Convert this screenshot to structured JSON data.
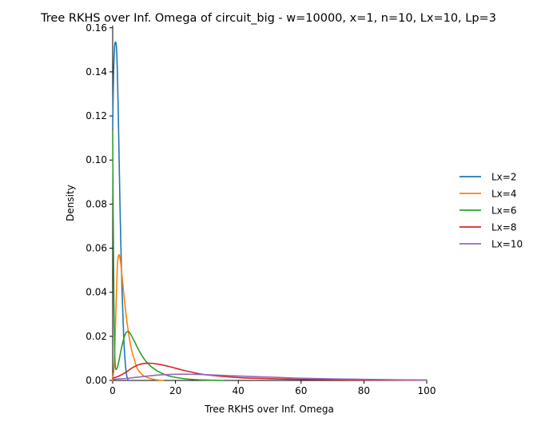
{
  "chart_data": {
    "type": "line",
    "title": "Tree RKHS over Inf. Omega of circuit_big - w=10000, x=1, n=10, Lx=10, Lp=3",
    "xlabel": "Tree RKHS over Inf. Omega",
    "ylabel": "Density",
    "xlim": [
      0,
      100
    ],
    "ylim": [
      0,
      0.161
    ],
    "xticks": [
      "0",
      "20",
      "40",
      "60",
      "80",
      "100"
    ],
    "yticks": [
      "0.00",
      "0.02",
      "0.04",
      "0.06",
      "0.08",
      "0.10",
      "0.12",
      "0.14",
      "0.16"
    ],
    "grid": false,
    "legend_position": "right",
    "series": [
      {
        "name": "Lx=2",
        "color": "#1f77b4",
        "points": [
          [
            0,
            0.115
          ],
          [
            0.3,
            0.14
          ],
          [
            0.6,
            0.151
          ],
          [
            0.9,
            0.1535
          ],
          [
            1.2,
            0.151
          ],
          [
            1.5,
            0.14
          ],
          [
            1.8,
            0.12
          ],
          [
            2.1,
            0.097
          ],
          [
            2.5,
            0.068
          ],
          [
            3.0,
            0.04
          ],
          [
            3.5,
            0.02
          ],
          [
            4.0,
            0.008
          ],
          [
            4.5,
            0.002
          ],
          [
            5.0,
            0.0
          ]
        ]
      },
      {
        "name": "Lx=4",
        "color": "#ff7f0e",
        "points": [
          [
            0,
            0.0
          ],
          [
            0.5,
            0.008
          ],
          [
            1.0,
            0.03
          ],
          [
            1.5,
            0.052
          ],
          [
            2.0,
            0.057
          ],
          [
            2.5,
            0.054
          ],
          [
            3.0,
            0.047
          ],
          [
            4.0,
            0.033
          ],
          [
            5.0,
            0.022
          ],
          [
            6.0,
            0.014
          ],
          [
            7.0,
            0.009
          ],
          [
            8.0,
            0.005
          ],
          [
            10.0,
            0.002
          ],
          [
            13.0,
            0.0005
          ],
          [
            16.0,
            0.0
          ]
        ]
      },
      {
        "name": "Lx=6",
        "color": "#2ca02c",
        "points": [
          [
            0,
            0.113
          ],
          [
            0.2,
            0.07
          ],
          [
            0.4,
            0.035
          ],
          [
            0.6,
            0.015
          ],
          [
            0.8,
            0.007
          ],
          [
            1.0,
            0.005
          ],
          [
            1.5,
            0.006
          ],
          [
            2.0,
            0.009
          ],
          [
            3.0,
            0.016
          ],
          [
            4.0,
            0.021
          ],
          [
            4.8,
            0.0222
          ],
          [
            5.5,
            0.0215
          ],
          [
            7.0,
            0.0175
          ],
          [
            9.0,
            0.012
          ],
          [
            11.0,
            0.008
          ],
          [
            14.0,
            0.0045
          ],
          [
            18.0,
            0.002
          ],
          [
            25.0,
            0.0005
          ],
          [
            35.0,
            0.0
          ]
        ]
      },
      {
        "name": "Lx=8",
        "color": "#d62728",
        "points": [
          [
            0,
            0.001
          ],
          [
            2.0,
            0.002
          ],
          [
            4.0,
            0.0035
          ],
          [
            6.0,
            0.0055
          ],
          [
            8.0,
            0.007
          ],
          [
            10.0,
            0.0077
          ],
          [
            12.0,
            0.0078
          ],
          [
            14.0,
            0.0075
          ],
          [
            18.0,
            0.0063
          ],
          [
            22.0,
            0.0048
          ],
          [
            26.0,
            0.0035
          ],
          [
            30.0,
            0.0025
          ],
          [
            40.0,
            0.0013
          ],
          [
            50.0,
            0.0008
          ],
          [
            60.0,
            0.0005
          ],
          [
            80.0,
            0.0002
          ],
          [
            100.0,
            0.0001
          ]
        ]
      },
      {
        "name": "Lx=10",
        "color": "#9467bd",
        "points": [
          [
            0,
            0.0005
          ],
          [
            5.0,
            0.001
          ],
          [
            10.0,
            0.0018
          ],
          [
            15.0,
            0.0025
          ],
          [
            20.0,
            0.0028
          ],
          [
            25.0,
            0.0028
          ],
          [
            30.0,
            0.0026
          ],
          [
            40.0,
            0.002
          ],
          [
            50.0,
            0.0015
          ],
          [
            60.0,
            0.001
          ],
          [
            70.0,
            0.0007
          ],
          [
            80.0,
            0.0005
          ],
          [
            90.0,
            0.0003
          ],
          [
            100.0,
            0.0002
          ]
        ]
      }
    ]
  }
}
